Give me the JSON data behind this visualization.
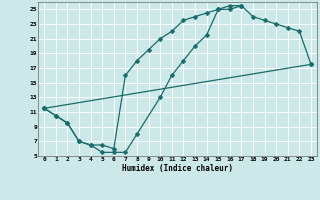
{
  "xlabel": "Humidex (Indice chaleur)",
  "bg_color": "#cde8e8",
  "grid_color": "#ffffff",
  "line_color": "#1a6b6b",
  "xlim": [
    -0.5,
    23.5
  ],
  "ylim": [
    5,
    26
  ],
  "xticks": [
    0,
    1,
    2,
    3,
    4,
    5,
    6,
    7,
    8,
    9,
    10,
    11,
    12,
    13,
    14,
    15,
    16,
    17,
    18,
    19,
    20,
    21,
    22,
    23
  ],
  "yticks": [
    5,
    7,
    9,
    11,
    13,
    15,
    17,
    19,
    21,
    23,
    25
  ],
  "line1_x": [
    0,
    1,
    2,
    3,
    4,
    5,
    6,
    7,
    8,
    10,
    11,
    12,
    13,
    14,
    15,
    16,
    17,
    18,
    19,
    20,
    21,
    22,
    23
  ],
  "line1_y": [
    11.5,
    10.5,
    9.5,
    7.0,
    6.5,
    5.5,
    5.5,
    5.5,
    8.0,
    13.0,
    16.0,
    18.0,
    20.0,
    21.5,
    25.0,
    25.0,
    25.5,
    24.0,
    23.5,
    23.0,
    22.5,
    22.0,
    17.5
  ],
  "line2_x": [
    0,
    1,
    2,
    3,
    4,
    5,
    6,
    7,
    8,
    9,
    10,
    11,
    12,
    13,
    14,
    15,
    16,
    17
  ],
  "line2_y": [
    11.5,
    10.5,
    9.5,
    7.0,
    6.5,
    6.5,
    6.0,
    16.0,
    18.0,
    19.5,
    21.0,
    22.0,
    23.5,
    24.0,
    24.5,
    25.0,
    25.5,
    25.5
  ],
  "line3_x": [
    0,
    23
  ],
  "line3_y": [
    11.5,
    17.5
  ],
  "marker": "D",
  "markersize": 2.5,
  "linewidth": 0.9
}
